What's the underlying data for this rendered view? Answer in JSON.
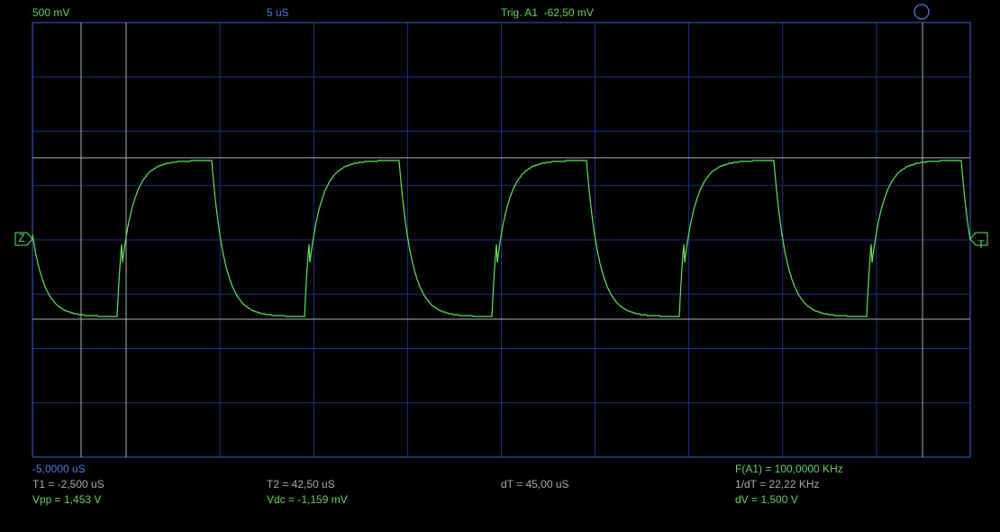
{
  "top_bar": {
    "volts_per_div": "500 mV",
    "time_per_div": "5 uS",
    "trigger": "Trig. A1  -62,50 mV"
  },
  "markers": {
    "zero": "Z",
    "trigger": "T"
  },
  "footer": {
    "time_offset": "-5,0000 uS",
    "frequency": "F(A1) = 100,0000 KHz",
    "t1": "T1 = -2,500 uS",
    "t2": "T2 = 42,50 uS",
    "dt": "dT = 45,00 uS",
    "inv_dt": "1/dT = 22,22 KHz",
    "vpp": "Vpp = 1,453 V",
    "vdc": "Vdc = -1,159 mV",
    "dv": "dV = 1,500 V"
  }
}
